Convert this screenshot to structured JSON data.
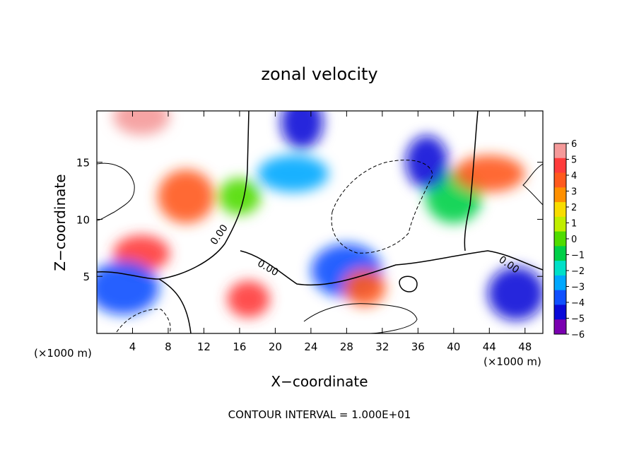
{
  "chart_data": {
    "type": "heatmap",
    "title": "zonal velocity",
    "xlabel": "X−coordinate",
    "ylabel": "Z−coordinate",
    "x_unit_label_left": "(×1000 m)",
    "x_unit_label_right": "(×1000 m)",
    "xlim": [
      0,
      50
    ],
    "ylim": [
      0,
      19.5
    ],
    "x_ticks": [
      4,
      8,
      12,
      16,
      20,
      24,
      28,
      32,
      36,
      40,
      44,
      48
    ],
    "x_tick_labels": [
      "4",
      "8",
      "12",
      "16",
      "20",
      "24",
      "28",
      "32",
      "36",
      "40",
      "44",
      "48"
    ],
    "y_ticks": [
      5,
      10,
      15
    ],
    "y_tick_labels": [
      "5",
      "10",
      "15"
    ],
    "colorbar": {
      "min": -6,
      "max": 6,
      "tick_values": [
        6,
        5,
        4,
        3,
        2,
        1,
        0,
        -1,
        -2,
        -3,
        -4,
        -5,
        -6
      ],
      "tick_labels": [
        "6",
        "5",
        "4",
        "3",
        "2",
        "1",
        "0",
        "−1",
        "−2",
        "−3",
        "−4",
        "−5",
        "−6"
      ],
      "colors": [
        "#f59a9a",
        "#ff3c3c",
        "#ff5a1e",
        "#ff9000",
        "#f8dc00",
        "#c0ee00",
        "#50dc00",
        "#00d048",
        "#00e0c8",
        "#00a8ff",
        "#1050ff",
        "#0a0ad8",
        "#7a00b0"
      ]
    },
    "contour_labels": [
      "0.00",
      "0.00",
      "0.00"
    ],
    "footer": "CONTOUR INTERVAL = 1.000E+01",
    "features": [
      {
        "name": "jet-center",
        "x": 16,
        "z": 12,
        "value": 0
      },
      {
        "name": "jet-left-flank",
        "x": 10,
        "z": 12,
        "value": 4
      },
      {
        "name": "jet-right-flank",
        "x": 22,
        "z": 14,
        "value": -3
      },
      {
        "name": "negative-upper",
        "x": 23,
        "z": 18.5,
        "value": -5
      },
      {
        "name": "positive-left-lower",
        "x": 5,
        "z": 7,
        "value": 5
      },
      {
        "name": "negative-band",
        "x": 28,
        "z": 5.5,
        "value": -4
      },
      {
        "name": "positive-band",
        "x": 30,
        "z": 4,
        "value": 4
      },
      {
        "name": "right-column",
        "x": 40,
        "z": 12,
        "value": -1
      },
      {
        "name": "right-column-east",
        "x": 44,
        "z": 14,
        "value": 4
      },
      {
        "name": "right-column-west",
        "x": 37,
        "z": 15,
        "value": -5
      },
      {
        "name": "top-left-positive",
        "x": 5,
        "z": 19,
        "value": 6
      },
      {
        "name": "lower-left-negative",
        "x": 3,
        "z": 4,
        "value": -4
      },
      {
        "name": "lower-mid-positive",
        "x": 17,
        "z": 3,
        "value": 5
      },
      {
        "name": "right-lower-negative",
        "x": 47,
        "z": 3.5,
        "value": -5
      }
    ]
  }
}
